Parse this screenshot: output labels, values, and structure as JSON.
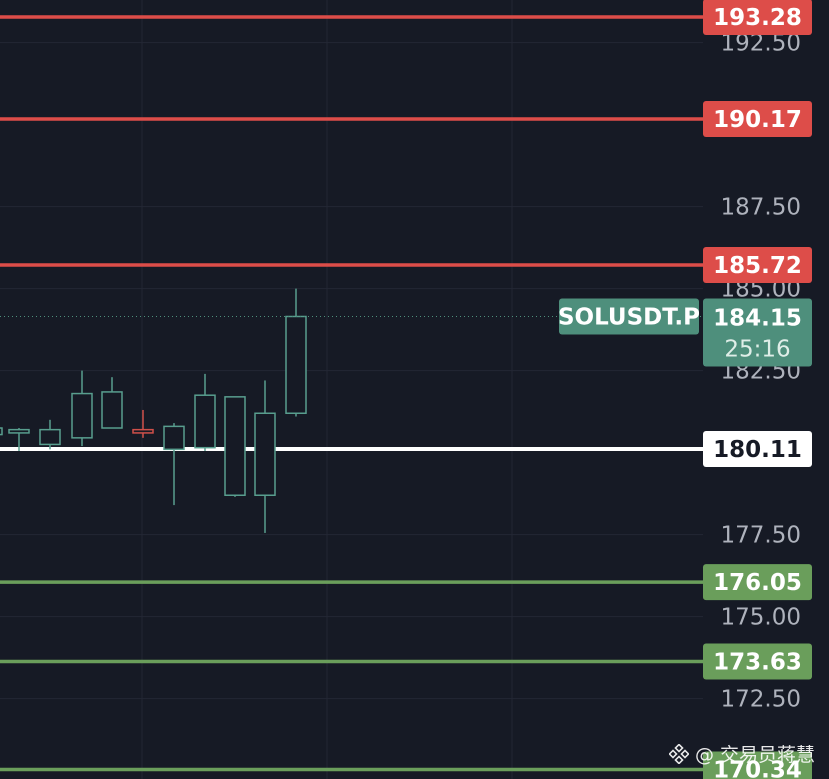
{
  "symbol": "SOLUSDT.P",
  "last_price": "184.15",
  "countdown": "25:16",
  "watermark": {
    "handle": "@ 交易员蒋慧"
  },
  "colors": {
    "background": "#161a25",
    "grid": "#232734",
    "resistance": "#dd4d49",
    "support": "#6a9e5b",
    "pivot": "#ffffff",
    "bull_candle": "#589e8e",
    "bear_candle": "#d0504a",
    "last_price_tag": "#4e8f7c",
    "axis_text": "#aeb2bc"
  },
  "axis": {
    "tick_labels": [
      "192.50",
      "187.50",
      "185.00",
      "182.50",
      "177.50",
      "175.00",
      "172.50"
    ]
  },
  "levels": [
    {
      "label": "193.28",
      "price": 193.28,
      "kind": "resistance"
    },
    {
      "label": "190.17",
      "price": 190.17,
      "kind": "resistance"
    },
    {
      "label": "185.72",
      "price": 185.72,
      "kind": "resistance"
    },
    {
      "label": "180.11",
      "price": 180.11,
      "kind": "pivot"
    },
    {
      "label": "176.05",
      "price": 176.05,
      "kind": "support"
    },
    {
      "label": "173.63",
      "price": 173.63,
      "kind": "support"
    },
    {
      "label": "170.34",
      "price": 170.34,
      "kind": "support"
    }
  ],
  "chart_data": {
    "type": "candlestick",
    "title": "",
    "ylim": [
      170.0,
      194.5
    ],
    "ohlc": [
      {
        "o": 180.55,
        "h": 180.8,
        "l": 180.25,
        "c": 180.75
      },
      {
        "o": 180.6,
        "h": 180.75,
        "l": 180.05,
        "c": 180.7
      },
      {
        "o": 180.25,
        "h": 181.0,
        "l": 180.1,
        "c": 180.7
      },
      {
        "o": 180.45,
        "h": 182.5,
        "l": 180.2,
        "c": 181.8
      },
      {
        "o": 180.75,
        "h": 182.3,
        "l": 180.75,
        "c": 181.85
      },
      {
        "o": 180.7,
        "h": 181.3,
        "l": 180.45,
        "c": 180.6
      },
      {
        "o": 180.1,
        "h": 180.9,
        "l": 178.4,
        "c": 180.8
      },
      {
        "o": 180.15,
        "h": 182.4,
        "l": 180.05,
        "c": 181.75
      },
      {
        "o": 178.7,
        "h": 181.7,
        "l": 178.65,
        "c": 181.7
      },
      {
        "o": 178.7,
        "h": 182.2,
        "l": 177.55,
        "c": 181.2
      },
      {
        "o": 181.2,
        "h": 185.0,
        "l": 181.1,
        "c": 184.15
      }
    ]
  }
}
